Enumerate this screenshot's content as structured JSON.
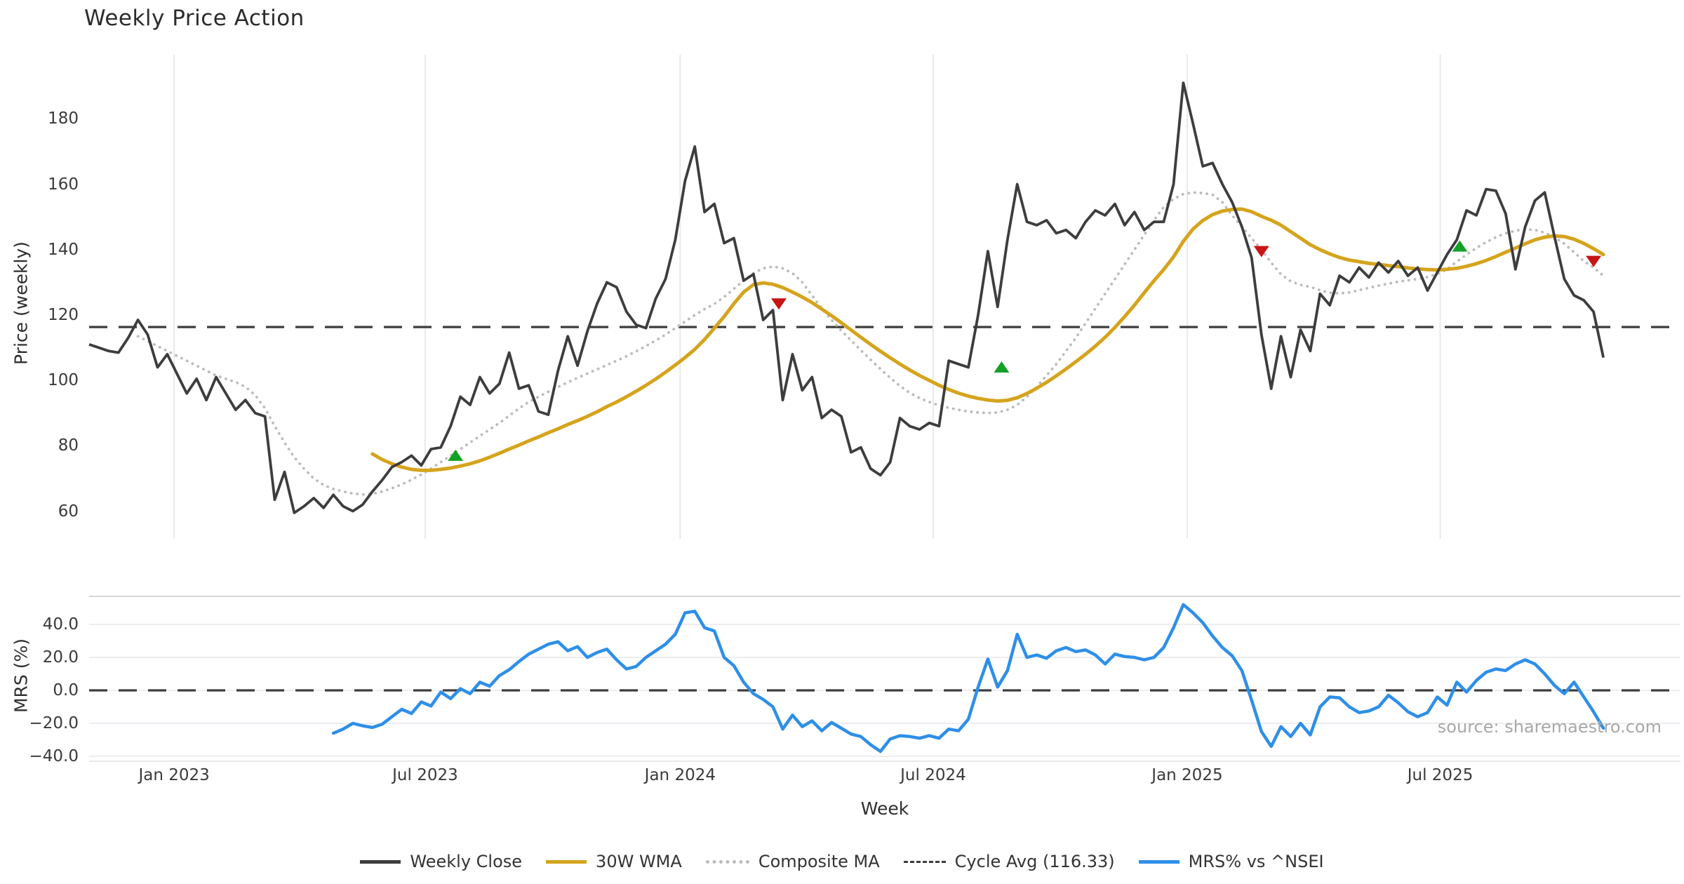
{
  "title": "Weekly Price Action",
  "source_note": "source: sharemaestro.com",
  "axes": {
    "x_label": "Week",
    "price_axis_label": "Price (weekly)",
    "mrs_axis_label": "MRS (%)",
    "x_ticks": [
      {
        "label": "Jan 2023",
        "week": 8.7
      },
      {
        "label": "Jul 2023",
        "week": 34.4
      },
      {
        "label": "Jan 2024",
        "week": 60.5
      },
      {
        "label": "Jul 2024",
        "week": 86.4
      },
      {
        "label": "Jan 2025",
        "week": 112.4
      },
      {
        "label": "Jul 2025",
        "week": 138.3
      }
    ],
    "price_ticks": [
      {
        "label": "180",
        "value": 180
      },
      {
        "label": "160",
        "value": 160
      },
      {
        "label": "140",
        "value": 140
      },
      {
        "label": "120",
        "value": 120
      },
      {
        "label": "100",
        "value": 100
      },
      {
        "label": "80",
        "value": 80
      },
      {
        "label": "60",
        "value": 60
      }
    ],
    "mrs_ticks": [
      {
        "label": "40.0",
        "value": 40
      },
      {
        "label": "20.0",
        "value": 20
      },
      {
        "label": "0.0",
        "value": 0
      },
      {
        "label": "−20.0",
        "value": -20
      },
      {
        "label": "−40.0",
        "value": -40
      }
    ]
  },
  "legend": {
    "items": [
      {
        "label": "Weekly Close",
        "swatch": "close"
      },
      {
        "label": "30W WMA",
        "swatch": "wma"
      },
      {
        "label": "Composite MA",
        "swatch": "composite"
      },
      {
        "label": "Cycle Avg (116.33)",
        "swatch": "cycle"
      },
      {
        "label": "MRS% vs ^NSEI",
        "swatch": "mrs"
      }
    ]
  },
  "colors": {
    "close": "#3d3d3d",
    "wma": "#d5a41d",
    "composite": "#bcbcbc",
    "cycle": "#3d3d3d",
    "mrs": "#2e8fe8",
    "buy": "#13a227",
    "sell": "#c81414",
    "grid": "#e9e9e9",
    "mrs_grid": "#ededf2",
    "spine": "#d6d6d6"
  },
  "chart_data": {
    "type": "line",
    "title": "Weekly Price Action",
    "x_unit": "week_index",
    "cycle_avg": 116.33,
    "panels": [
      {
        "name": "price",
        "ylabel": "Price (weekly)",
        "ylim": [
          46.8,
          200.3
        ],
        "grid": "vertical-only",
        "series": [
          {
            "name": "Weekly Close",
            "start_week": 0,
            "values": [
              111,
              110,
              109,
              108.5,
              113,
              118.5,
              114,
              104,
              108,
              102,
              96,
              100.5,
              94,
              101,
              96,
              91,
              94,
              90,
              89,
              63.5,
              72,
              59.5,
              61.5,
              64,
              61,
              65,
              61.5,
              60,
              62,
              66,
              69.5,
              73.5,
              75,
              77,
              74,
              79,
              79.5,
              86,
              95,
              92.5,
              101,
              96,
              99,
              108.5,
              97.5,
              98.5,
              90.5,
              89.5,
              103,
              113.5,
              104.5,
              115,
              123.5,
              130,
              128.5,
              121,
              117,
              116,
              125,
              131,
              143,
              161,
              171.5,
              151.5,
              154,
              142,
              143.5,
              130.5,
              132.5,
              118.5,
              121.5,
              94,
              108,
              97,
              101,
              88.5,
              91,
              89,
              78,
              79.5,
              73,
              71,
              75,
              88.5,
              86,
              85,
              87,
              86,
              106,
              105,
              104,
              120,
              139.5,
              122.5,
              143,
              160,
              148.5,
              147.5,
              149,
              145,
              146,
              143.5,
              148.5,
              152,
              150.5,
              154,
              147.5,
              151.5,
              146,
              148.5,
              148.5,
              160,
              191,
              178.5,
              165.5,
              166.5,
              160,
              154.5,
              147,
              137.5,
              114,
              97.5,
              113.5,
              101,
              115.5,
              109,
              126.5,
              123,
              132,
              130,
              134.5,
              131.5,
              136,
              133,
              136.5,
              132,
              134.5,
              127.5,
              133,
              138.5,
              143,
              152,
              150.5,
              158.5,
              158,
              151,
              134,
              147,
              155,
              157.5,
              144,
              131,
              126,
              124.5,
              121,
              107
            ]
          },
          {
            "name": "30W WMA",
            "start_week": 29,
            "values": [
              77.5,
              75.8,
              74.5,
              73.5,
              72.8,
              72.5,
              72.5,
              72.8,
              73.2,
              73.8,
              74.5,
              75.4,
              76.5,
              77.7,
              79,
              80.2,
              81.5,
              82.7,
              84,
              85.2,
              86.5,
              87.7,
              89,
              90.4,
              92,
              93.4,
              95,
              96.7,
              98.5,
              100.4,
              102.5,
              104.7,
              107,
              109.5,
              112.5,
              116,
              119.5,
              123.5,
              127,
              129.3,
              129.8,
              129.4,
              128.4,
              127,
              125.5,
              123.8,
              121.8,
              119.8,
              117.6,
              115.4,
              113.2,
              111,
              108.9,
              106.9,
              105,
              103.2,
              101.5,
              100,
              98.5,
              97.2,
              96.1,
              95.2,
              94.5,
              94,
              93.7,
              93.9,
              94.7,
              96,
              97.6,
              99.4,
              101.4,
              103.5,
              105.7,
              108,
              110.5,
              113.2,
              116.2,
              119.5,
              123,
              126.8,
              130.5,
              133.9,
              137.8,
              142.5,
              146.3,
              148.9,
              150.7,
              151.8,
              152.3,
              152.4,
              151.6,
              150.2,
              149,
              147.5,
              145.5,
              143.5,
              141.5,
              140,
              138.7,
              137.6,
              136.8,
              136.3,
              135.8,
              135.5,
              135.1,
              134.8,
              134.4,
              134.1,
              133.9,
              133.8,
              134,
              134.3,
              134.9,
              135.7,
              136.7,
              137.9,
              139.2,
              140.5,
              141.8,
              143,
              143.8,
              144.2,
              144,
              143.2,
              141.9,
              140.3,
              138.5
            ]
          },
          {
            "name": "Composite MA",
            "start_week": 5,
            "values": [
              113.5,
              112,
              110.5,
              109,
              107.5,
              106,
              104.5,
              103,
              101.5,
              100.5,
              99.5,
              98,
              95.5,
              91.5,
              86,
              81,
              76.5,
              73,
              70,
              68,
              66.8,
              66,
              65.4,
              65.1,
              65.3,
              66,
              67,
              68.2,
              69.6,
              71.2,
              73,
              75,
              77,
              79,
              81,
              83,
              85,
              87,
              89.2,
              91.4,
              93.4,
              95,
              96.5,
              98,
              99.4,
              100.8,
              102.1,
              103.4,
              104.7,
              106,
              107.4,
              108.9,
              110.5,
              112.2,
              114,
              116,
              118,
              120,
              121.8,
              123.4,
              125.5,
              128,
              130.5,
              132.8,
              134.3,
              134.8,
              134.3,
              132.8,
              130,
              126,
              122,
              118.5,
              115.2,
              112.2,
              109.2,
              106.3,
              103.5,
              100.8,
              98.3,
              96.2,
              94.6,
              93.4,
              92.4,
              91.6,
              91,
              90.5,
              90.2,
              90,
              90.2,
              91,
              92.5,
              95,
              98,
              101.5,
              105,
              109,
              113,
              117.5,
              122,
              126.5,
              131,
              135.5,
              140,
              144.5,
              149,
              153,
              155.5,
              157,
              157.5,
              157.3,
              156.8,
              154.5,
              150.5,
              147,
              143.5,
              140,
              136,
              132.5,
              130.3,
              129.2,
              128.6,
              127.6,
              126.8,
              126.6,
              126.9,
              127.6,
              128.3,
              129,
              129.6,
              130.2,
              130.6,
              131,
              131.6,
              132.6,
              134,
              136.3,
              138.5,
              140.5,
              142.3,
              143.8,
              145,
              145.8,
              146.2,
              146,
              145.2,
              143.8,
              141.8,
              139.2,
              136.5,
              134.5,
              132
            ]
          },
          {
            "name": "Cycle Avg",
            "style": "dashed",
            "value": 116.33
          }
        ],
        "markers": {
          "buy": [
            {
              "week": 37.5,
              "value": 77
            },
            {
              "week": 93.4,
              "value": 104
            },
            {
              "week": 140.3,
              "value": 141
            }
          ],
          "sell": [
            {
              "week": 70.6,
              "value": 123.5
            },
            {
              "week": 120,
              "value": 139.5
            },
            {
              "week": 154,
              "value": 136.5
            }
          ]
        }
      },
      {
        "name": "mrs",
        "ylabel": "MRS (%)",
        "ylim": [
          -43,
          57
        ],
        "grid": "horizontal-only",
        "series": [
          {
            "name": "MRS% vs ^NSEI",
            "start_week": 25,
            "values": [
              -26,
              -23.5,
              -20,
              -21.5,
              -22.5,
              -20.5,
              -16,
              -11.5,
              -14,
              -7,
              -9.5,
              -1,
              -5,
              1,
              -2,
              5,
              2.5,
              9,
              12.5,
              17.5,
              22,
              25,
              28,
              29.5,
              24,
              26.5,
              20,
              23,
              25,
              18.5,
              13,
              14.5,
              20,
              24,
              28,
              34,
              47,
              48,
              38,
              36,
              20,
              15,
              5,
              -2,
              -5.5,
              -10,
              -23.5,
              -15,
              -22,
              -18.5,
              -24.5,
              -19.5,
              -23,
              -26.5,
              -28,
              -33,
              -37,
              -29.5,
              -27.5,
              -28,
              -29,
              -27.5,
              -29,
              -23.5,
              -24.5,
              -17.5,
              2,
              19,
              2,
              12,
              34,
              20,
              21.5,
              19.5,
              24,
              26,
              23.5,
              24.5,
              21.5,
              16,
              22,
              20.5,
              20,
              18.5,
              20,
              26,
              38,
              52,
              47,
              41,
              33,
              26,
              21,
              12,
              -6,
              -25,
              -34,
              -22,
              -28,
              -20,
              -27,
              -10,
              -4,
              -4.5,
              -10,
              -13.5,
              -12.5,
              -10,
              -3,
              -7.5,
              -13,
              -16,
              -13.5,
              -4,
              -9,
              5,
              -1,
              6,
              11,
              13,
              12,
              16,
              18.5,
              16,
              10,
              3,
              -2,
              5,
              -4,
              -13,
              -23
            ]
          },
          {
            "name": "Zero Line",
            "style": "dashed",
            "value": 0
          }
        ]
      }
    ]
  }
}
